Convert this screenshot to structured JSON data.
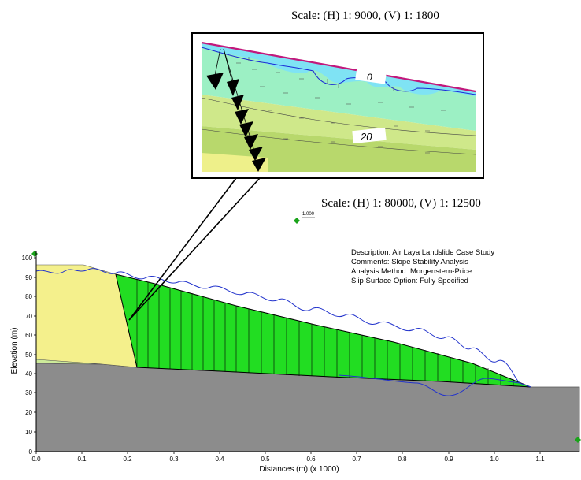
{
  "scale_inset": "Scale: (H) 1: 9000, (V) 1: 1800",
  "scale_main": "Scale: (H) 1: 80000, (V) 1: 12500",
  "marker_label": "1.000",
  "info": {
    "description": "Description: Air Laya Landslide Case Study",
    "comments": "Comments: Slope Stability Analysis",
    "method": "Analysis Method: Morgenstern-Price",
    "slip": "Slip Surface Option: Fully Specified"
  },
  "inset_labels": {
    "contour_0": "0",
    "contour_20": "20"
  },
  "axes": {
    "xlabel": "Distances (m) (x 1000)",
    "ylabel": "Elevation (m)",
    "x_ticks": [
      "0.0",
      "0.1",
      "0.2",
      "0.3",
      "0.4",
      "0.5",
      "0.6",
      "0.7",
      "0.8",
      "0.9",
      "1.0",
      "1.1"
    ],
    "y_ticks": [
      "0",
      "10",
      "20",
      "30",
      "40",
      "50",
      "60",
      "70",
      "80",
      "90",
      "100"
    ]
  },
  "colors": {
    "bedrock": "#8c8c8c",
    "yellow_soil": "#f4f08c",
    "light_green_soil": "#cdeb9a",
    "slip_mass": "#22dd22",
    "water_table": "#2233cc"
  }
}
